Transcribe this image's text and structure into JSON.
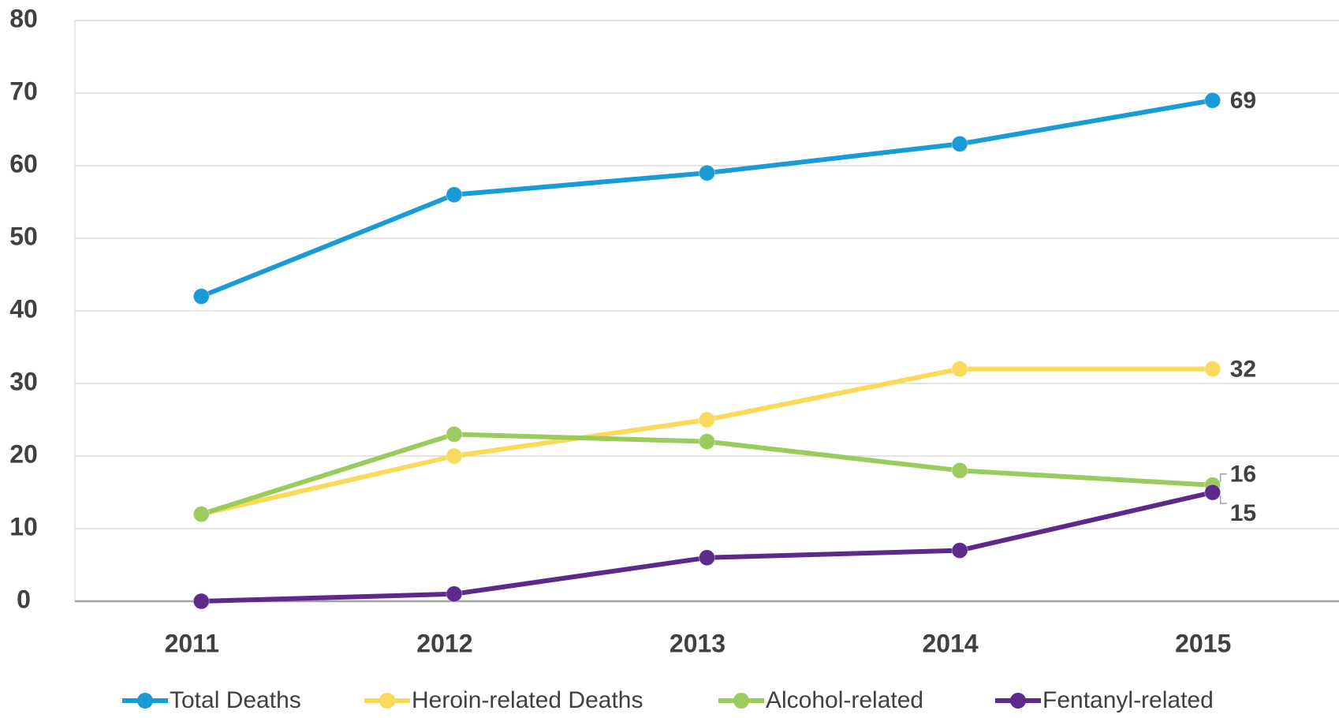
{
  "chart_data": {
    "type": "line",
    "categories": [
      "2011",
      "2012",
      "2013",
      "2014",
      "2015"
    ],
    "series": [
      {
        "name": "Total Deaths",
        "color": "#1a9ad6",
        "values": [
          42,
          56,
          59,
          63,
          69
        ]
      },
      {
        "name": "Heroin-related Deaths",
        "color": "#fbd95a",
        "values": [
          12,
          20,
          25,
          32,
          32
        ]
      },
      {
        "name": "Alcohol-related",
        "color": "#9bcb5c",
        "values": [
          12,
          23,
          22,
          18,
          16
        ]
      },
      {
        "name": "Fentanyl-related",
        "color": "#5c2a8a",
        "values": [
          0,
          1,
          6,
          7,
          15
        ]
      }
    ],
    "ylim": [
      0,
      80
    ],
    "yticks": [
      0,
      10,
      20,
      30,
      40,
      50,
      60,
      70,
      80
    ],
    "grid": true,
    "legend": "bottom"
  }
}
